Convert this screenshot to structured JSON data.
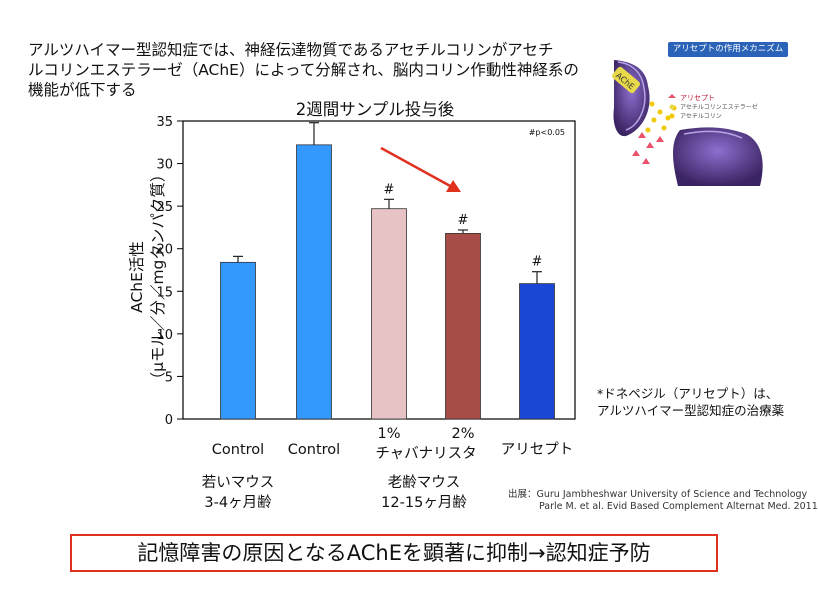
{
  "intro": {
    "line1": "アルツハイマー型認知症では、神経伝達物質であるアセチルコリンがアセチ",
    "line2": "ルコリンエステラーゼ（AChE）によって分解され、脳内コリン作動性神経系の",
    "line3": "機能が低下する"
  },
  "inset": {
    "title": "アリセプトの作用メカニズム",
    "ache_tag": "AChE",
    "legend1": "アリセプト",
    "legend2": "アセチルコリンエステラーゼ",
    "legend3": "アセチルコリン"
  },
  "chart_data": {
    "type": "bar",
    "title": "2週間サンプル投与後",
    "ylabel_line1": "AChE活性",
    "ylabel_line2": "（μモル／分／mgタンパク質）",
    "ylim": [
      0,
      35
    ],
    "yticks": [
      0,
      5,
      10,
      15,
      20,
      25,
      30,
      35
    ],
    "significance_note": "#p<0.05",
    "categories": [
      "Control",
      "Control",
      "1% チャバナリスタ",
      "2% チャバナリスタ",
      "アリセプト"
    ],
    "values": [
      18.4,
      32.2,
      24.7,
      21.8,
      15.9
    ],
    "errors": [
      0.7,
      2.6,
      1.1,
      0.4,
      1.4
    ],
    "significance": [
      "",
      "",
      "#",
      "#",
      "#"
    ],
    "colors": [
      "#3399ff",
      "#3399ff",
      "#e7c3c5",
      "#a84c48",
      "#1a47d6"
    ],
    "grid": false,
    "legend": "none"
  },
  "labels": {
    "cat1": "Control",
    "cat2": "Control",
    "cat3_top": "1%",
    "cat4_top": "2%",
    "cat34_bottom": "チャバナリスタ",
    "cat5": "アリセプト",
    "group1_line1": "若いマウス",
    "group1_line2": "3-4ヶ月齢",
    "group2_line1": "老齢マウス",
    "group2_line2": "12-15ヶ月齢"
  },
  "note": {
    "line1": "*ドネペジル（アリセプト）は、",
    "line2": "アルツハイマー型認知症の治療薬"
  },
  "source": {
    "line1": "出展：Guru Jambheshwar University of Science and Technology",
    "line2": "Parle M. et al. Evid Based Complement Alternat Med. 2011"
  },
  "conclusion": "記憶障害の原因となるAChEを顕著に抑制→認知症予防",
  "colors": {
    "arrow": "#e0311f",
    "box_border": "#e0311f",
    "inset_title_bg": "#2b63b8"
  }
}
